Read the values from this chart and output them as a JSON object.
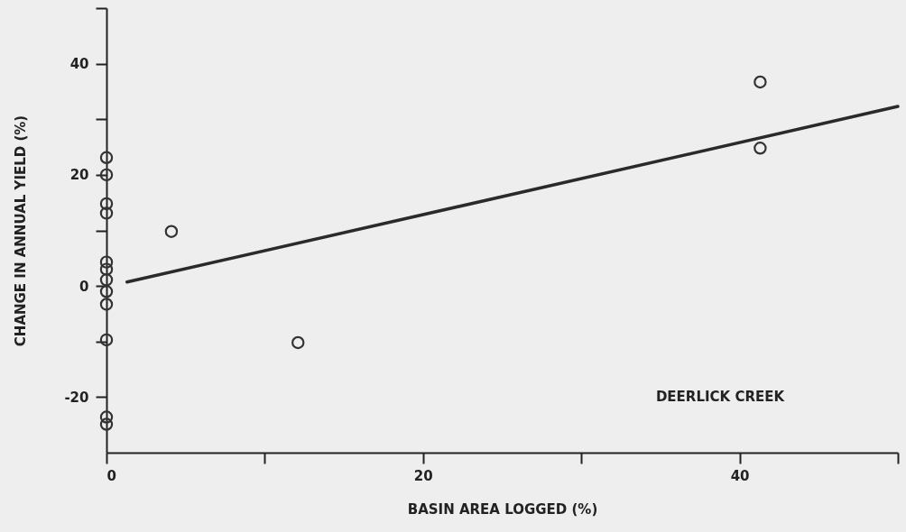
{
  "chart_data": {
    "type": "scatter",
    "xlabel": "BASIN AREA LOGGED (%)",
    "ylabel": "CHANGE IN ANNUAL YIELD (%)",
    "annotations": [
      "DEERLICK CREEK"
    ],
    "xlim": [
      0,
      50
    ],
    "ylim": [
      -30,
      50
    ],
    "xticks": [
      0,
      {
        "value": 10,
        "label": null
      },
      20,
      {
        "value": 30,
        "label": null
      },
      40,
      {
        "value": 50,
        "label": null
      }
    ],
    "yticks": [
      {
        "value": 50,
        "label": null
      },
      40,
      {
        "value": 30,
        "label": null
      },
      20,
      {
        "value": 10,
        "label": null
      },
      0,
      {
        "value": -10,
        "label": null
      },
      -20
    ],
    "grid": false,
    "series": [
      {
        "type": "scatter",
        "marker": "circle",
        "color": "#333333",
        "x": [
          0,
          0,
          0,
          0,
          0,
          0,
          0,
          0,
          0,
          0,
          0,
          0,
          4.1,
          12.1,
          41.3,
          41.3
        ],
        "values": [
          23.1,
          20,
          14.8,
          13.1,
          4.3,
          3,
          1.1,
          -1,
          -3.3,
          -9.7,
          -23.6,
          -24.9,
          9.8,
          -10.2,
          36.7,
          24.8
        ]
      },
      {
        "type": "line",
        "marker": "none",
        "color": "#2a2a2a",
        "x": [
          1.3,
          50
        ],
        "values": [
          0.7,
          32.3
        ]
      }
    ]
  }
}
